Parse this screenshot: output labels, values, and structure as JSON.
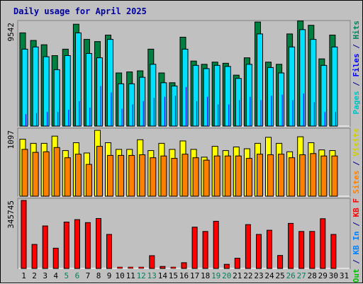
{
  "chart_data": {
    "type": "bar",
    "title": "Daily usage for April 2025",
    "categories": [
      "1",
      "2",
      "3",
      "4",
      "5",
      "6",
      "7",
      "8",
      "9",
      "10",
      "11",
      "12",
      "13",
      "14",
      "15",
      "16",
      "17",
      "18",
      "19",
      "20",
      "21",
      "22",
      "23",
      "24",
      "25",
      "26",
      "27",
      "28",
      "29",
      "30",
      "31"
    ],
    "weekend_days": [
      "5",
      "6",
      "12",
      "13",
      "19",
      "20",
      "26",
      "27"
    ],
    "panels": [
      {
        "id": "requests",
        "max_label": "9542",
        "ymax": 9542,
        "legend": [
          {
            "text": "Hits",
            "color": "#00805c"
          },
          {
            "text": " / ",
            "color": "#000080"
          },
          {
            "text": "Files",
            "color": "#0000ff"
          },
          {
            "text": " / ",
            "color": "#000080"
          },
          {
            "text": "Pages",
            "color": "#00c0c0"
          }
        ],
        "series": [
          {
            "name": "Hits",
            "color": "#008040",
            "values": [
              8600,
              7900,
              7500,
              6500,
              7100,
              9400,
              8000,
              7800,
              8400,
              4900,
              5000,
              5100,
              7100,
              4900,
              4000,
              8200,
              6000,
              5700,
              5900,
              5800,
              4700,
              6300,
              9600,
              5900,
              5700,
              8500,
              9700,
              9300,
              6200,
              8400,
              null
            ]
          },
          {
            "name": "Files",
            "color": "#00e0ff",
            "values": [
              7100,
              7300,
              6400,
              5200,
              6500,
              8600,
              6700,
              6300,
              8000,
              3900,
              3900,
              4500,
              5700,
              4000,
              3700,
              7100,
              5600,
              5300,
              5600,
              5500,
              4400,
              5700,
              8500,
              5400,
              4900,
              7300,
              8900,
              8000,
              5600,
              7300,
              null
            ]
          },
          {
            "name": "Pages",
            "color": "#0000ff",
            "values": [
              1100,
              1200,
              1300,
              1300,
              1500,
              2300,
              1700,
              3700,
              3100,
              1600,
              2000,
              2300,
              2600,
              2700,
              2800,
              3600,
              2300,
              2700,
              2000,
              2000,
              2400,
              2700,
              2400,
              2800,
              2900,
              2400,
              3000,
              2200,
              1300,
              1300,
              null
            ]
          }
        ]
      },
      {
        "id": "visits",
        "max_label": "1097",
        "ymax": 1097,
        "legend": [
          {
            "text": "Visits",
            "color": "#d0d000"
          },
          {
            "text": " / ",
            "color": "#000080"
          },
          {
            "text": "Sites",
            "color": "#ff8000"
          }
        ],
        "series": [
          {
            "name": "Visits",
            "color": "#ffff00",
            "values": [
              950,
              880,
              880,
              1000,
              760,
              890,
              720,
              1097,
              890,
              780,
              780,
              940,
              760,
              880,
              780,
              920,
              780,
              650,
              830,
              760,
              820,
              790,
              880,
              980,
              880,
              740,
              990,
              890,
              770,
              760,
              null
            ]
          },
          {
            "name": "Sites",
            "color": "#ff8000",
            "values": [
              780,
              730,
              740,
              810,
              640,
              700,
              530,
              830,
              680,
              680,
              680,
              690,
              640,
              670,
              630,
              700,
              640,
              600,
              670,
              670,
              670,
              630,
              700,
              690,
              700,
              640,
              690,
              710,
              670,
              670,
              null
            ]
          }
        ]
      },
      {
        "id": "bandwidth",
        "max_label": "345745",
        "ymax": 345745,
        "legend": [
          {
            "text": "KB F",
            "color": "#ff0000"
          },
          {
            "text": " / ",
            "color": "#000080"
          },
          {
            "text": "KB In",
            "color": "#0080ff"
          },
          {
            "text": " / ",
            "color": "#000080"
          },
          {
            "text": "KB Out",
            "color": "#00c000"
          }
        ],
        "series": [
          {
            "name": "KB F",
            "color": "#ff0000",
            "values": [
              345745,
              122000,
              216000,
              103000,
              236000,
              248000,
              233000,
              254000,
              173000,
              0,
              0,
              5000,
              65000,
              10000,
              0,
              29000,
              210000,
              188000,
              240000,
              21000,
              52000,
              223000,
              173000,
              194000,
              66000,
              229000,
              188000,
              188000,
              253000,
              173000,
              null
            ]
          }
        ]
      }
    ]
  }
}
